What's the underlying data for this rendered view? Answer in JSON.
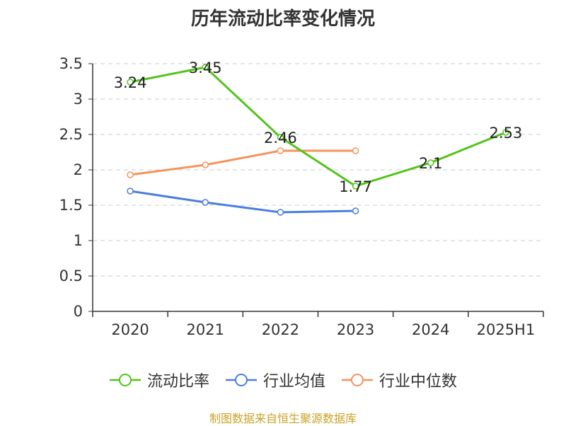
{
  "chart_data": {
    "type": "line",
    "title": "历年流动比率变化情况",
    "categories": [
      "2020",
      "2021",
      "2022",
      "2023",
      "2024",
      "2025H1"
    ],
    "ylim": [
      0,
      3.5
    ],
    "yticks": [
      "0",
      "0.5",
      "1",
      "1.5",
      "2",
      "2.5",
      "3",
      "3.5"
    ],
    "grid": true,
    "legend_position": "bottom",
    "series": [
      {
        "name": "流动比率",
        "color": "#52c41a",
        "values": [
          3.24,
          3.45,
          2.46,
          1.77,
          2.1,
          2.53
        ],
        "labels": [
          "3.24",
          "3.45",
          "2.46",
          "1.77",
          "2.1",
          "2.53"
        ]
      },
      {
        "name": "行业均值",
        "color": "#4a7fdc",
        "values": [
          1.7,
          1.54,
          1.4,
          1.42,
          null,
          null
        ]
      },
      {
        "name": "行业中位数",
        "color": "#f5935c",
        "values": [
          1.93,
          2.07,
          2.27,
          2.27,
          null,
          null
        ]
      }
    ]
  },
  "source": {
    "text": "制图数据来自恒生聚源数据库",
    "color": "#c9a227"
  }
}
